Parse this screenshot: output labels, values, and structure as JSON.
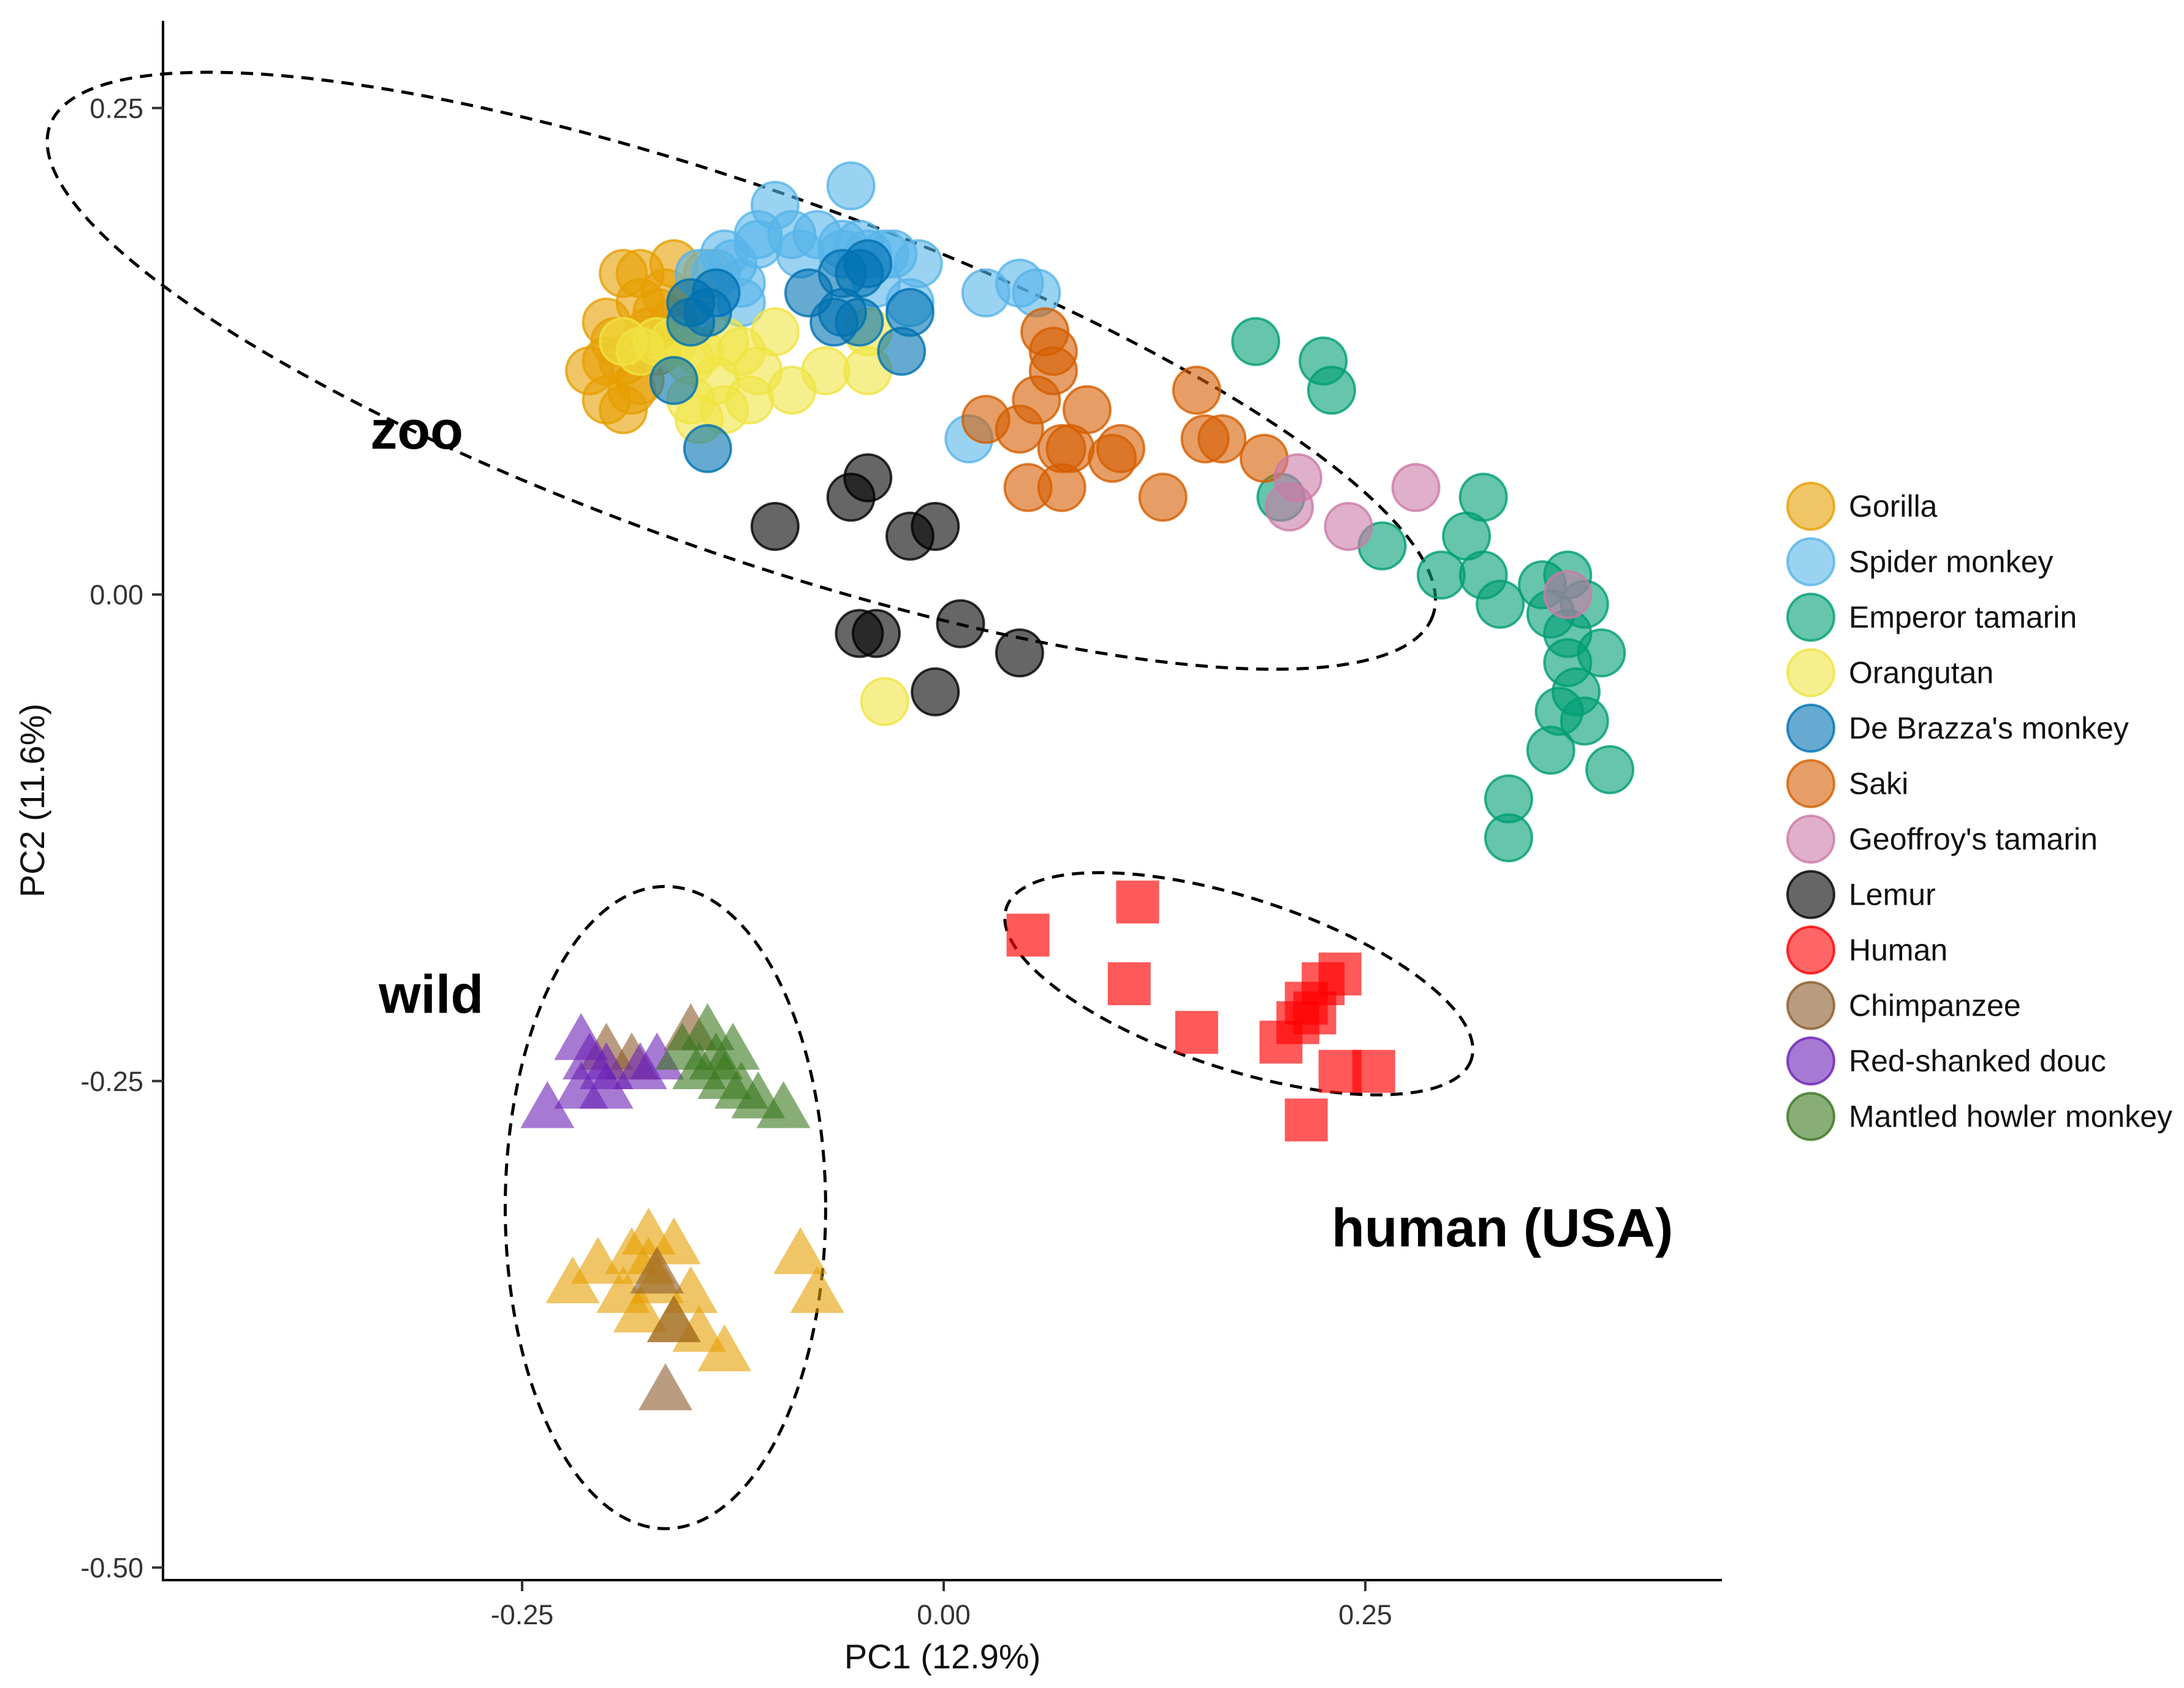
{
  "chart_data": {
    "type": "scatter",
    "title": "",
    "xlabel": "PC1 (12.9%)",
    "ylabel": "PC2 (11.6%)",
    "xlim": [
      -0.465,
      0.46
    ],
    "ylim": [
      -0.505,
      0.295
    ],
    "xticks": [
      {
        "value": -0.25,
        "label": "-0.25"
      },
      {
        "value": 0.0,
        "label": "0.00"
      },
      {
        "value": 0.25,
        "label": "0.25"
      }
    ],
    "yticks": [
      {
        "value": 0.25,
        "label": "0.25"
      },
      {
        "value": 0.0,
        "label": "0.00"
      },
      {
        "value": -0.25,
        "label": "-0.25"
      },
      {
        "value": -0.5,
        "label": "-0.50"
      }
    ],
    "grid": false,
    "legend_position": "right",
    "legend_entries": [
      "Gorilla",
      "Spider monkey",
      "Emperor tamarin",
      "Orangutan",
      "De Brazza's monkey",
      "Saki",
      "Geoffroy's tamarin",
      "Lemur",
      "Human",
      "Chimpanzee",
      "Red-shanked douc",
      "Mantled howler monkey"
    ],
    "annotations": [
      {
        "text": "zoo",
        "x": -0.34,
        "y": 0.075
      },
      {
        "text": "wild",
        "x": -0.335,
        "y": -0.215
      },
      {
        "text": "human (USA)",
        "x": 0.23,
        "y": -0.335
      }
    ],
    "ellipses": [
      {
        "name": "zoo",
        "cx": -0.12,
        "cy": 0.115,
        "rx": 0.435,
        "ry": 0.093,
        "angle_deg": 19.5
      },
      {
        "name": "wild",
        "cx": -0.165,
        "cy": -0.315,
        "rx": 0.095,
        "ry": 0.165,
        "angle_deg": 0
      },
      {
        "name": "human",
        "cx": 0.175,
        "cy": -0.2,
        "rx": 0.145,
        "ry": 0.044,
        "angle_deg": 18
      }
    ],
    "series": [
      {
        "name": "Gorilla",
        "color": "#E69F00",
        "shape": "circle",
        "points": [
          [
            -0.19,
            0.165
          ],
          [
            -0.18,
            0.165
          ],
          [
            -0.16,
            0.17
          ],
          [
            -0.14,
            0.165
          ],
          [
            -0.2,
            0.14
          ],
          [
            -0.18,
            0.15
          ],
          [
            -0.17,
            0.145
          ],
          [
            -0.19,
            0.12
          ],
          [
            -0.21,
            0.115
          ],
          [
            -0.2,
            0.1
          ],
          [
            -0.18,
            0.11
          ],
          [
            -0.19,
            0.095
          ],
          [
            -0.17,
            0.125
          ],
          [
            -0.16,
            0.14
          ],
          [
            -0.15,
            0.15
          ],
          [
            -0.2,
            0.12
          ],
          [
            -0.185,
            0.105
          ],
          [
            -0.175,
            0.135
          ],
          [
            -0.195,
            0.13
          ],
          [
            -0.165,
            0.155
          ]
        ]
      },
      {
        "name": "Gorilla (wild)",
        "color": "#E69F00",
        "shape": "triangle",
        "points": [
          [
            -0.22,
            -0.355
          ],
          [
            -0.205,
            -0.345
          ],
          [
            -0.185,
            -0.34
          ],
          [
            -0.175,
            -0.33
          ],
          [
            -0.16,
            -0.335
          ],
          [
            -0.17,
            -0.355
          ],
          [
            -0.18,
            -0.37
          ],
          [
            -0.16,
            -0.375
          ],
          [
            -0.145,
            -0.38
          ],
          [
            -0.13,
            -0.39
          ],
          [
            -0.175,
            -0.345
          ],
          [
            -0.085,
            -0.34
          ],
          [
            -0.075,
            -0.36
          ],
          [
            -0.15,
            -0.36
          ],
          [
            -0.19,
            -0.36
          ]
        ]
      },
      {
        "name": "Spider monkey",
        "color": "#56B4E9",
        "shape": "circle",
        "points": [
          [
            -0.055,
            0.21
          ],
          [
            -0.1,
            0.2
          ],
          [
            -0.11,
            0.18
          ],
          [
            -0.085,
            0.175
          ],
          [
            -0.06,
            0.175
          ],
          [
            -0.045,
            0.175
          ],
          [
            -0.035,
            0.175
          ],
          [
            -0.015,
            0.17
          ],
          [
            -0.13,
            0.175
          ],
          [
            -0.125,
            0.17
          ],
          [
            -0.135,
            0.165
          ],
          [
            -0.12,
            0.16
          ],
          [
            -0.06,
            0.18
          ],
          [
            -0.05,
            0.18
          ],
          [
            -0.04,
            0.16
          ],
          [
            -0.02,
            0.15
          ],
          [
            0.025,
            0.155
          ],
          [
            0.045,
            0.16
          ],
          [
            0.055,
            0.155
          ],
          [
            0.015,
            0.08
          ],
          [
            -0.11,
            0.185
          ],
          [
            -0.09,
            0.185
          ],
          [
            -0.075,
            0.185
          ],
          [
            -0.145,
            0.165
          ],
          [
            -0.03,
            0.175
          ],
          [
            -0.12,
            0.15
          ]
        ]
      },
      {
        "name": "Emperor tamarin",
        "color": "#009E73",
        "shape": "circle",
        "points": [
          [
            0.185,
            0.13
          ],
          [
            0.225,
            0.12
          ],
          [
            0.23,
            0.105
          ],
          [
            0.2,
            0.05
          ],
          [
            0.26,
            0.025
          ],
          [
            0.295,
            0.01
          ],
          [
            0.31,
            0.03
          ],
          [
            0.32,
            0.05
          ],
          [
            0.32,
            0.01
          ],
          [
            0.33,
            -0.005
          ],
          [
            0.355,
            0.005
          ],
          [
            0.36,
            -0.01
          ],
          [
            0.37,
            0.01
          ],
          [
            0.37,
            -0.02
          ],
          [
            0.38,
            -0.005
          ],
          [
            0.37,
            -0.035
          ],
          [
            0.39,
            -0.03
          ],
          [
            0.375,
            -0.05
          ],
          [
            0.365,
            -0.06
          ],
          [
            0.36,
            -0.08
          ],
          [
            0.38,
            -0.065
          ],
          [
            0.395,
            -0.09
          ],
          [
            0.335,
            -0.105
          ],
          [
            0.335,
            -0.125
          ]
        ]
      },
      {
        "name": "Orangutan",
        "color": "#F0E442",
        "shape": "circle",
        "points": [
          [
            -0.19,
            0.13
          ],
          [
            -0.18,
            0.125
          ],
          [
            -0.17,
            0.13
          ],
          [
            -0.16,
            0.13
          ],
          [
            -0.145,
            0.125
          ],
          [
            -0.13,
            0.13
          ],
          [
            -0.12,
            0.125
          ],
          [
            -0.15,
            0.12
          ],
          [
            -0.135,
            0.11
          ],
          [
            -0.11,
            0.115
          ],
          [
            -0.15,
            0.1
          ],
          [
            -0.13,
            0.095
          ],
          [
            -0.115,
            0.1
          ],
          [
            -0.145,
            0.09
          ],
          [
            -0.09,
            0.105
          ],
          [
            -0.07,
            0.115
          ],
          [
            -0.045,
            0.115
          ],
          [
            -0.1,
            0.135
          ],
          [
            -0.045,
            0.135
          ],
          [
            -0.035,
            -0.055
          ]
        ]
      },
      {
        "name": "De Brazza's monkey",
        "color": "#0072B2",
        "shape": "circle",
        "points": [
          [
            -0.15,
            0.15
          ],
          [
            -0.135,
            0.155
          ],
          [
            -0.14,
            0.145
          ],
          [
            -0.15,
            0.14
          ],
          [
            -0.08,
            0.155
          ],
          [
            -0.06,
            0.165
          ],
          [
            -0.05,
            0.165
          ],
          [
            -0.045,
            0.17
          ],
          [
            -0.06,
            0.145
          ],
          [
            -0.05,
            0.14
          ],
          [
            -0.02,
            0.145
          ],
          [
            -0.025,
            0.125
          ],
          [
            -0.16,
            0.11
          ],
          [
            -0.14,
            0.075
          ],
          [
            -0.065,
            0.14
          ]
        ]
      },
      {
        "name": "Saki",
        "color": "#D55E00",
        "shape": "circle",
        "points": [
          [
            0.06,
            0.135
          ],
          [
            0.065,
            0.125
          ],
          [
            0.065,
            0.115
          ],
          [
            0.055,
            0.1
          ],
          [
            0.085,
            0.095
          ],
          [
            0.025,
            0.09
          ],
          [
            0.07,
            0.075
          ],
          [
            0.075,
            0.075
          ],
          [
            0.105,
            0.075
          ],
          [
            0.1,
            0.07
          ],
          [
            0.15,
            0.105
          ],
          [
            0.155,
            0.08
          ],
          [
            0.165,
            0.08
          ],
          [
            0.19,
            0.07
          ],
          [
            0.05,
            0.055
          ],
          [
            0.07,
            0.055
          ],
          [
            0.13,
            0.05
          ],
          [
            0.045,
            0.085
          ]
        ]
      },
      {
        "name": "Geoffroy's tamarin",
        "color": "#CC79A7",
        "shape": "circle",
        "points": [
          [
            0.21,
            0.06
          ],
          [
            0.205,
            0.045
          ],
          [
            0.24,
            0.035
          ],
          [
            0.28,
            0.055
          ],
          [
            0.37,
            0.0
          ]
        ]
      },
      {
        "name": "Lemur",
        "color": "#000000",
        "shape": "circle",
        "points": [
          [
            -0.045,
            0.06
          ],
          [
            -0.055,
            0.05
          ],
          [
            -0.1,
            0.035
          ],
          [
            -0.02,
            0.03
          ],
          [
            -0.005,
            0.035
          ],
          [
            -0.05,
            -0.02
          ],
          [
            -0.04,
            -0.02
          ],
          [
            0.01,
            -0.015
          ],
          [
            0.045,
            -0.03
          ],
          [
            -0.005,
            -0.05
          ]
        ]
      },
      {
        "name": "Human",
        "color": "#FF0000",
        "shape": "square",
        "points": [
          [
            0.05,
            -0.175
          ],
          [
            0.115,
            -0.158
          ],
          [
            0.11,
            -0.2
          ],
          [
            0.15,
            -0.225
          ],
          [
            0.2,
            -0.23
          ],
          [
            0.21,
            -0.22
          ],
          [
            0.215,
            -0.21
          ],
          [
            0.225,
            -0.2
          ],
          [
            0.235,
            -0.195
          ],
          [
            0.235,
            -0.245
          ],
          [
            0.255,
            -0.245
          ],
          [
            0.215,
            -0.27
          ],
          [
            0.22,
            -0.215
          ]
        ]
      },
      {
        "name": "Chimpanzee",
        "color": "#8B5A2B",
        "shape": "triangle",
        "points": [
          [
            -0.2,
            -0.235
          ],
          [
            -0.185,
            -0.24
          ],
          [
            -0.15,
            -0.225
          ],
          [
            -0.17,
            -0.35
          ],
          [
            -0.16,
            -0.375
          ],
          [
            -0.165,
            -0.41
          ]
        ]
      },
      {
        "name": "Red-shanked douc",
        "color": "#6A1FB5",
        "shape": "triangle",
        "points": [
          [
            -0.215,
            -0.23
          ],
          [
            -0.21,
            -0.24
          ],
          [
            -0.2,
            -0.245
          ],
          [
            -0.215,
            -0.255
          ],
          [
            -0.2,
            -0.255
          ],
          [
            -0.235,
            -0.265
          ],
          [
            -0.17,
            -0.24
          ],
          [
            -0.18,
            -0.245
          ]
        ]
      },
      {
        "name": "Mantled howler monkey",
        "color": "#38761D",
        "shape": "triangle",
        "points": [
          [
            -0.14,
            -0.225
          ],
          [
            -0.125,
            -0.235
          ],
          [
            -0.135,
            -0.24
          ],
          [
            -0.145,
            -0.245
          ],
          [
            -0.13,
            -0.25
          ],
          [
            -0.12,
            -0.255
          ],
          [
            -0.11,
            -0.26
          ],
          [
            -0.095,
            -0.265
          ],
          [
            -0.155,
            -0.235
          ]
        ]
      }
    ]
  }
}
